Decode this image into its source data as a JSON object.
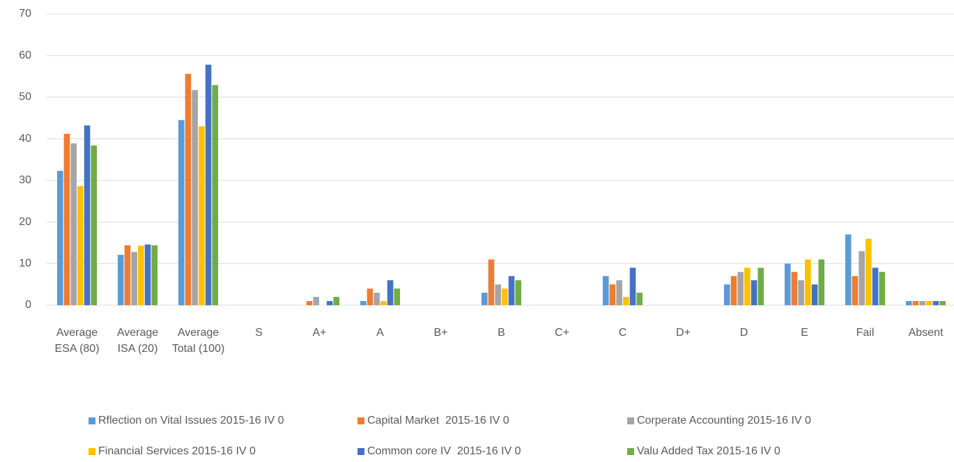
{
  "chart_data": {
    "type": "bar",
    "categories": [
      "Average ESA (80)",
      "Average ISA (20)",
      "Average Total (100)",
      "S",
      "A+",
      "A",
      "B+",
      "B",
      "C+",
      "C",
      "D+",
      "D",
      "E",
      "Fail",
      "Absent"
    ],
    "series": [
      {
        "name": "Rflection on Vital Issues 2015-16 IV 0",
        "color": "#5b9bd5",
        "values": [
          32.3,
          12.1,
          44.5,
          0,
          0,
          1,
          0,
          3,
          0,
          7,
          0,
          5,
          10,
          17,
          1
        ]
      },
      {
        "name": "Capital Market  2015-16 IV 0",
        "color": "#ed7d31",
        "values": [
          41.2,
          14.4,
          55.6,
          0,
          1,
          4,
          0,
          11,
          0,
          5,
          0,
          7,
          8,
          7,
          1
        ]
      },
      {
        "name": "Corperate Accounting 2015-16 IV 0",
        "color": "#a5a5a5",
        "values": [
          38.9,
          12.8,
          51.7,
          0,
          2,
          3,
          0,
          5,
          0,
          6,
          0,
          8,
          6,
          13,
          1
        ]
      },
      {
        "name": "Financial Services 2015-16 IV 0",
        "color": "#ffc000",
        "values": [
          28.6,
          14.3,
          43.0,
          0,
          0,
          1,
          0,
          4,
          0,
          2,
          0,
          9,
          11,
          16,
          1
        ]
      },
      {
        "name": "Common core IV  2015-16 IV 0",
        "color": "#4472c4",
        "values": [
          43.2,
          14.6,
          57.8,
          0,
          1,
          6,
          0,
          7,
          0,
          9,
          0,
          6,
          5,
          9,
          1
        ]
      },
      {
        "name": "Valu Added Tax 2015-16 IV 0",
        "color": "#70ad47",
        "values": [
          38.4,
          14.4,
          52.9,
          0,
          2,
          4,
          0,
          6,
          0,
          3,
          0,
          9,
          11,
          8,
          1
        ]
      }
    ],
    "ylim": [
      0,
      70
    ],
    "yticks": [
      0,
      10,
      20,
      30,
      40,
      50,
      60,
      70
    ],
    "grid": true,
    "legend": "bottom"
  }
}
